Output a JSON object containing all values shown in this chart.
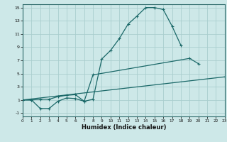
{
  "xlabel": "Humidex (Indice chaleur)",
  "xlim": [
    0,
    23
  ],
  "ylim": [
    -1.5,
    15.5
  ],
  "yticks": [
    -1,
    1,
    3,
    5,
    7,
    9,
    11,
    13,
    15
  ],
  "xticks": [
    0,
    1,
    2,
    3,
    4,
    5,
    6,
    7,
    8,
    9,
    10,
    11,
    12,
    13,
    14,
    15,
    16,
    17,
    18,
    19,
    20,
    21,
    22,
    23
  ],
  "background_color": "#cde8e8",
  "grid_color": "#aacece",
  "line_color": "#1a6868",
  "line1_x": [
    0,
    1,
    2,
    3,
    4,
    5,
    6,
    7,
    8,
    9,
    10,
    11,
    12,
    13,
    14,
    15,
    16,
    17,
    18
  ],
  "line1_y": [
    1,
    1,
    -0.3,
    -0.3,
    0.8,
    1.3,
    1.2,
    0.8,
    1.1,
    7.2,
    8.5,
    10.3,
    12.5,
    13.7,
    15,
    15,
    14.7,
    12.2,
    9.3
  ],
  "line2_x": [
    0,
    1,
    2,
    3,
    4,
    5,
    6,
    7,
    8,
    19,
    20
  ],
  "line2_y": [
    1,
    1,
    1.1,
    1.1,
    1.5,
    1.7,
    1.8,
    0.8,
    4.8,
    7.3,
    6.5
  ],
  "line3_x": [
    0,
    23
  ],
  "line3_y": [
    1,
    4.5
  ],
  "line_width": 0.9,
  "marker_size": 3.5
}
